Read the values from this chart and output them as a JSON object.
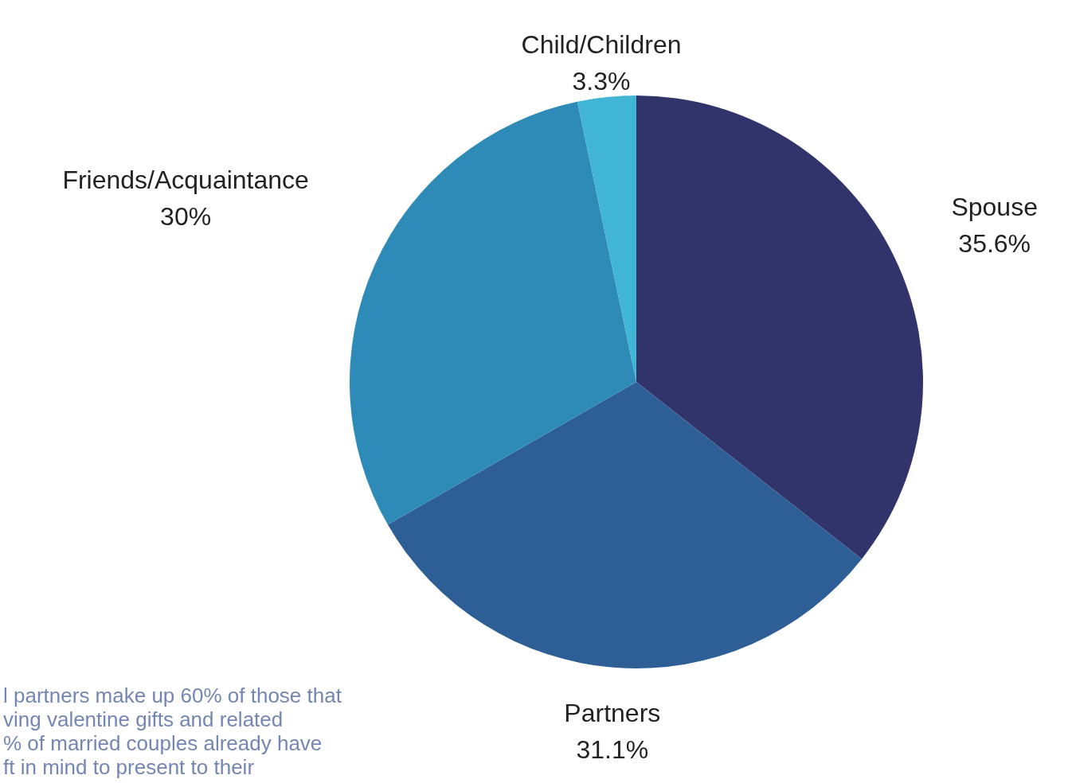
{
  "chart_data": {
    "type": "pie",
    "categories": [
      "Spouse",
      "Partners",
      "Friends/Acquaintance",
      "Child/Children"
    ],
    "values": [
      35.6,
      31.1,
      30,
      3.3
    ],
    "value_labels": [
      "35.6%",
      "31.1%",
      "30%",
      "3.3%"
    ],
    "colors": [
      "#31346b",
      "#2e5e96",
      "#2e8bb8",
      "#40b5d6"
    ],
    "annotations": [
      "l partners make up 60% of those that",
      "ving valentine gifts and related",
      "% of married couples already have",
      "ft in mind to present to their"
    ]
  }
}
